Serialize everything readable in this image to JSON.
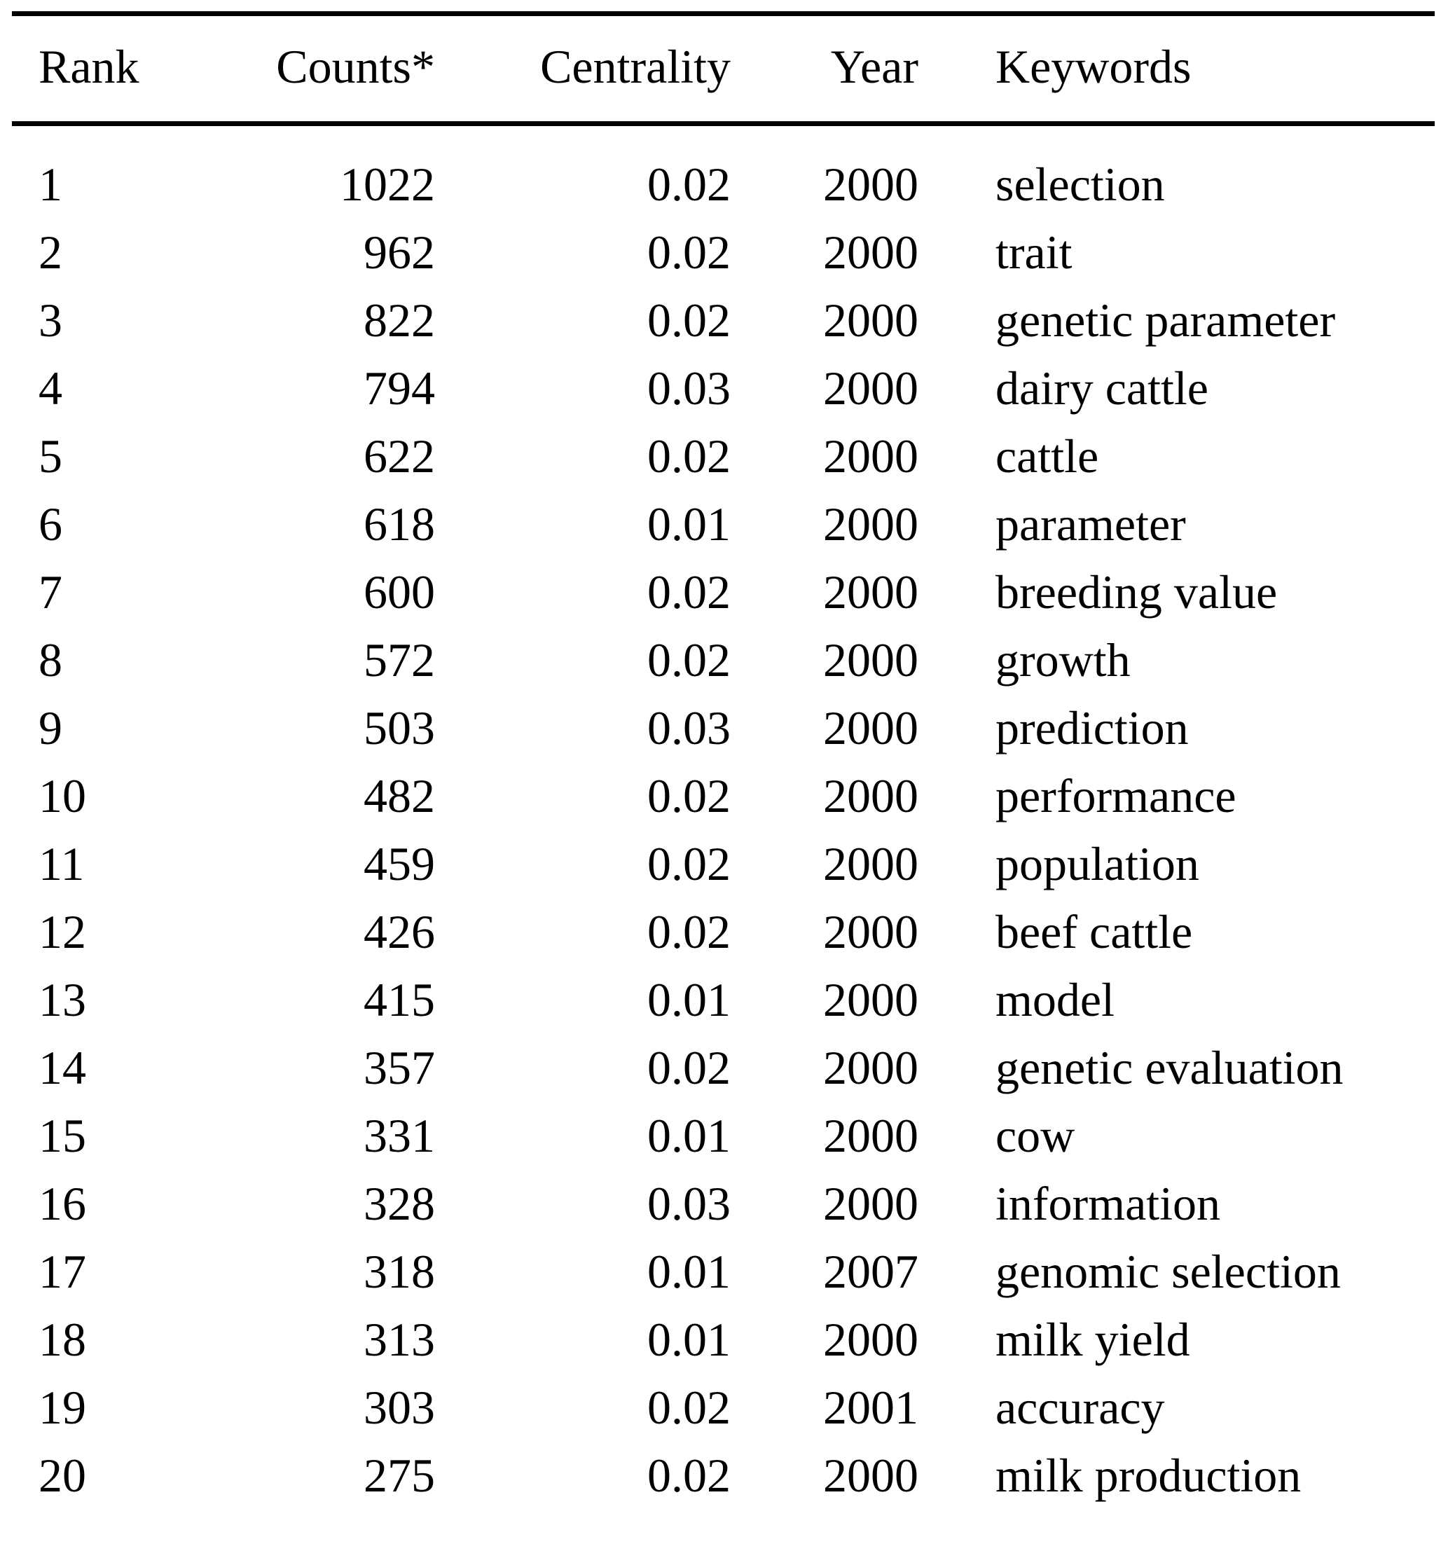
{
  "table": {
    "columns": [
      {
        "key": "rank",
        "label": "Rank",
        "align": "left"
      },
      {
        "key": "counts",
        "label": "Counts*",
        "align": "right"
      },
      {
        "key": "centrality",
        "label": "Centrality",
        "align": "right"
      },
      {
        "key": "year",
        "label": "Year",
        "align": "right"
      },
      {
        "key": "keywords",
        "label": "Keywords",
        "align": "left"
      }
    ],
    "rows": [
      {
        "rank": "1",
        "counts": "1022",
        "centrality": "0.02",
        "year": "2000",
        "keywords": "selection"
      },
      {
        "rank": "2",
        "counts": "962",
        "centrality": "0.02",
        "year": "2000",
        "keywords": "trait"
      },
      {
        "rank": "3",
        "counts": "822",
        "centrality": "0.02",
        "year": "2000",
        "keywords": "genetic parameter"
      },
      {
        "rank": "4",
        "counts": "794",
        "centrality": "0.03",
        "year": "2000",
        "keywords": "dairy cattle"
      },
      {
        "rank": "5",
        "counts": "622",
        "centrality": "0.02",
        "year": "2000",
        "keywords": "cattle"
      },
      {
        "rank": "6",
        "counts": "618",
        "centrality": "0.01",
        "year": "2000",
        "keywords": "parameter"
      },
      {
        "rank": "7",
        "counts": "600",
        "centrality": "0.02",
        "year": "2000",
        "keywords": "breeding value"
      },
      {
        "rank": "8",
        "counts": "572",
        "centrality": "0.02",
        "year": "2000",
        "keywords": "growth"
      },
      {
        "rank": "9",
        "counts": "503",
        "centrality": "0.03",
        "year": "2000",
        "keywords": "prediction"
      },
      {
        "rank": "10",
        "counts": "482",
        "centrality": "0.02",
        "year": "2000",
        "keywords": "performance"
      },
      {
        "rank": "11",
        "counts": "459",
        "centrality": "0.02",
        "year": "2000",
        "keywords": "population"
      },
      {
        "rank": "12",
        "counts": "426",
        "centrality": "0.02",
        "year": "2000",
        "keywords": "beef cattle"
      },
      {
        "rank": "13",
        "counts": "415",
        "centrality": "0.01",
        "year": "2000",
        "keywords": "model"
      },
      {
        "rank": "14",
        "counts": "357",
        "centrality": "0.02",
        "year": "2000",
        "keywords": "genetic evaluation"
      },
      {
        "rank": "15",
        "counts": "331",
        "centrality": "0.01",
        "year": "2000",
        "keywords": "cow"
      },
      {
        "rank": "16",
        "counts": "328",
        "centrality": "0.03",
        "year": "2000",
        "keywords": "information"
      },
      {
        "rank": "17",
        "counts": "318",
        "centrality": "0.01",
        "year": "2007",
        "keywords": "genomic selection"
      },
      {
        "rank": "18",
        "counts": "313",
        "centrality": "0.01",
        "year": "2000",
        "keywords": "milk yield"
      },
      {
        "rank": "19",
        "counts": "303",
        "centrality": "0.02",
        "year": "2001",
        "keywords": "accuracy"
      },
      {
        "rank": "20",
        "counts": "275",
        "centrality": "0.02",
        "year": "2000",
        "keywords": "milk production"
      }
    ]
  }
}
